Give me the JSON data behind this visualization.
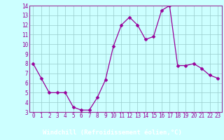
{
  "x": [
    0,
    1,
    2,
    3,
    4,
    5,
    6,
    7,
    8,
    9,
    10,
    11,
    12,
    13,
    14,
    15,
    16,
    17,
    18,
    19,
    20,
    21,
    22,
    23
  ],
  "y": [
    8,
    6.5,
    5,
    5,
    5,
    3.5,
    3.2,
    3.2,
    4.5,
    6.3,
    9.8,
    12,
    12.8,
    12,
    10.5,
    10.8,
    13.5,
    14,
    7.8,
    7.8,
    8,
    7.5,
    6.8,
    6.5
  ],
  "line_color": "#990099",
  "marker": "D",
  "marker_size": 2.5,
  "bg_color": "#ccffff",
  "grid_color": "#99cccc",
  "xlabel": "Windchill (Refroidissement éolien,°C)",
  "xlabel_color": "#ffffff",
  "xlabel_bg": "#993399",
  "xlim": [
    -0.5,
    23.5
  ],
  "ylim": [
    3,
    14
  ],
  "yticks": [
    3,
    4,
    5,
    6,
    7,
    8,
    9,
    10,
    11,
    12,
    13,
    14
  ],
  "xticks": [
    0,
    1,
    2,
    3,
    4,
    5,
    6,
    7,
    8,
    9,
    10,
    11,
    12,
    13,
    14,
    15,
    16,
    17,
    18,
    19,
    20,
    21,
    22,
    23
  ],
  "tick_label_color": "#990099",
  "tick_label_size": 5.5,
  "xlabel_fontsize": 6.5,
  "spine_color": "#993399",
  "line_width": 0.9
}
